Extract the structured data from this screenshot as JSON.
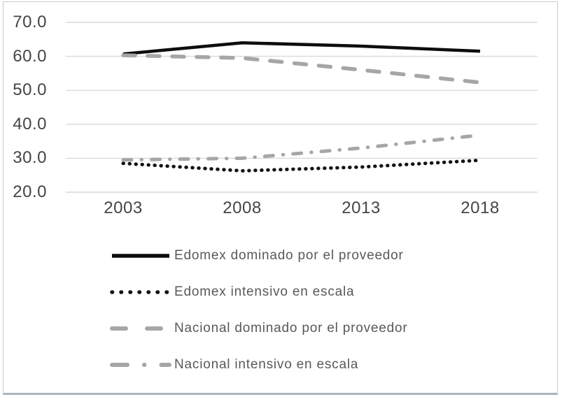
{
  "chart_data": {
    "type": "line",
    "title": "",
    "xlabel": "",
    "ylabel": "",
    "categories": [
      "2003",
      "2008",
      "2013",
      "2018"
    ],
    "series": [
      {
        "name": "Edomex dominado por el proveedor",
        "values": [
          60.7,
          64.0,
          63.0,
          61.5
        ],
        "color": "#0d0d0d",
        "style": "solid"
      },
      {
        "name": "Edomex intensivo en escala",
        "values": [
          28.5,
          26.3,
          27.4,
          29.4
        ],
        "color": "#141414",
        "style": "dotted"
      },
      {
        "name": "Nacional dominado por el proveedor",
        "values": [
          60.3,
          59.5,
          56.0,
          52.3
        ],
        "color": "#a6a6a6",
        "style": "dashed"
      },
      {
        "name": "Nacional intensivo en escala",
        "values": [
          29.5,
          30.0,
          33.0,
          36.8
        ],
        "color": "#a6a6a6",
        "style": "dash-dot"
      }
    ],
    "ylim": [
      20,
      70
    ],
    "yticks": [
      70,
      60,
      50,
      40,
      30,
      20
    ],
    "ytick_labels": [
      "70.0",
      "60.0",
      "50.0",
      "40.0",
      "30.0",
      "20.0"
    ],
    "grid": "horizontal",
    "legend_position": "bottom-left"
  },
  "colors": {
    "background": "#ffffff",
    "gridline": "#d9d9d9",
    "tick_label": "#454545",
    "legend_label": "#595959",
    "frame_border": "#c7cbd1",
    "frame_bottom_border": "#aab5bf"
  }
}
